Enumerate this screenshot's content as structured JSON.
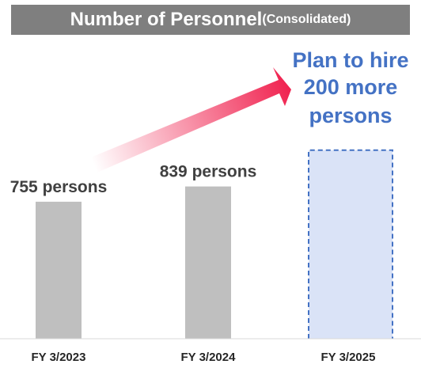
{
  "title": {
    "main": "Number of Personnel",
    "paren_open": " (",
    "sub": "Consolidated",
    "paren_close": ")"
  },
  "colors": {
    "title_bg": "#7f7f7f",
    "bar": "#bfbfbf",
    "plan_fill": "#dae3f7",
    "plan_border": "#4472c4",
    "plan_text": "#4472c4",
    "arrow": "#f0224f",
    "label_text": "#404040",
    "axis_text": "#262626"
  },
  "chart_data": {
    "type": "bar",
    "title": "Number of Personnel (Consolidated)",
    "categories": [
      "FY 3/2023",
      "FY 3/2024",
      "FY 3/2025"
    ],
    "values": [
      755,
      839,
      1039
    ],
    "labels": [
      "755 persons",
      "839 persons",
      ""
    ],
    "plan_index": 2,
    "annotation": {
      "lines": [
        "Plan to hire",
        "200 more",
        "persons"
      ]
    },
    "xlabel": "",
    "ylabel": "",
    "ylim": [
      0,
      1100
    ],
    "grid": false
  }
}
